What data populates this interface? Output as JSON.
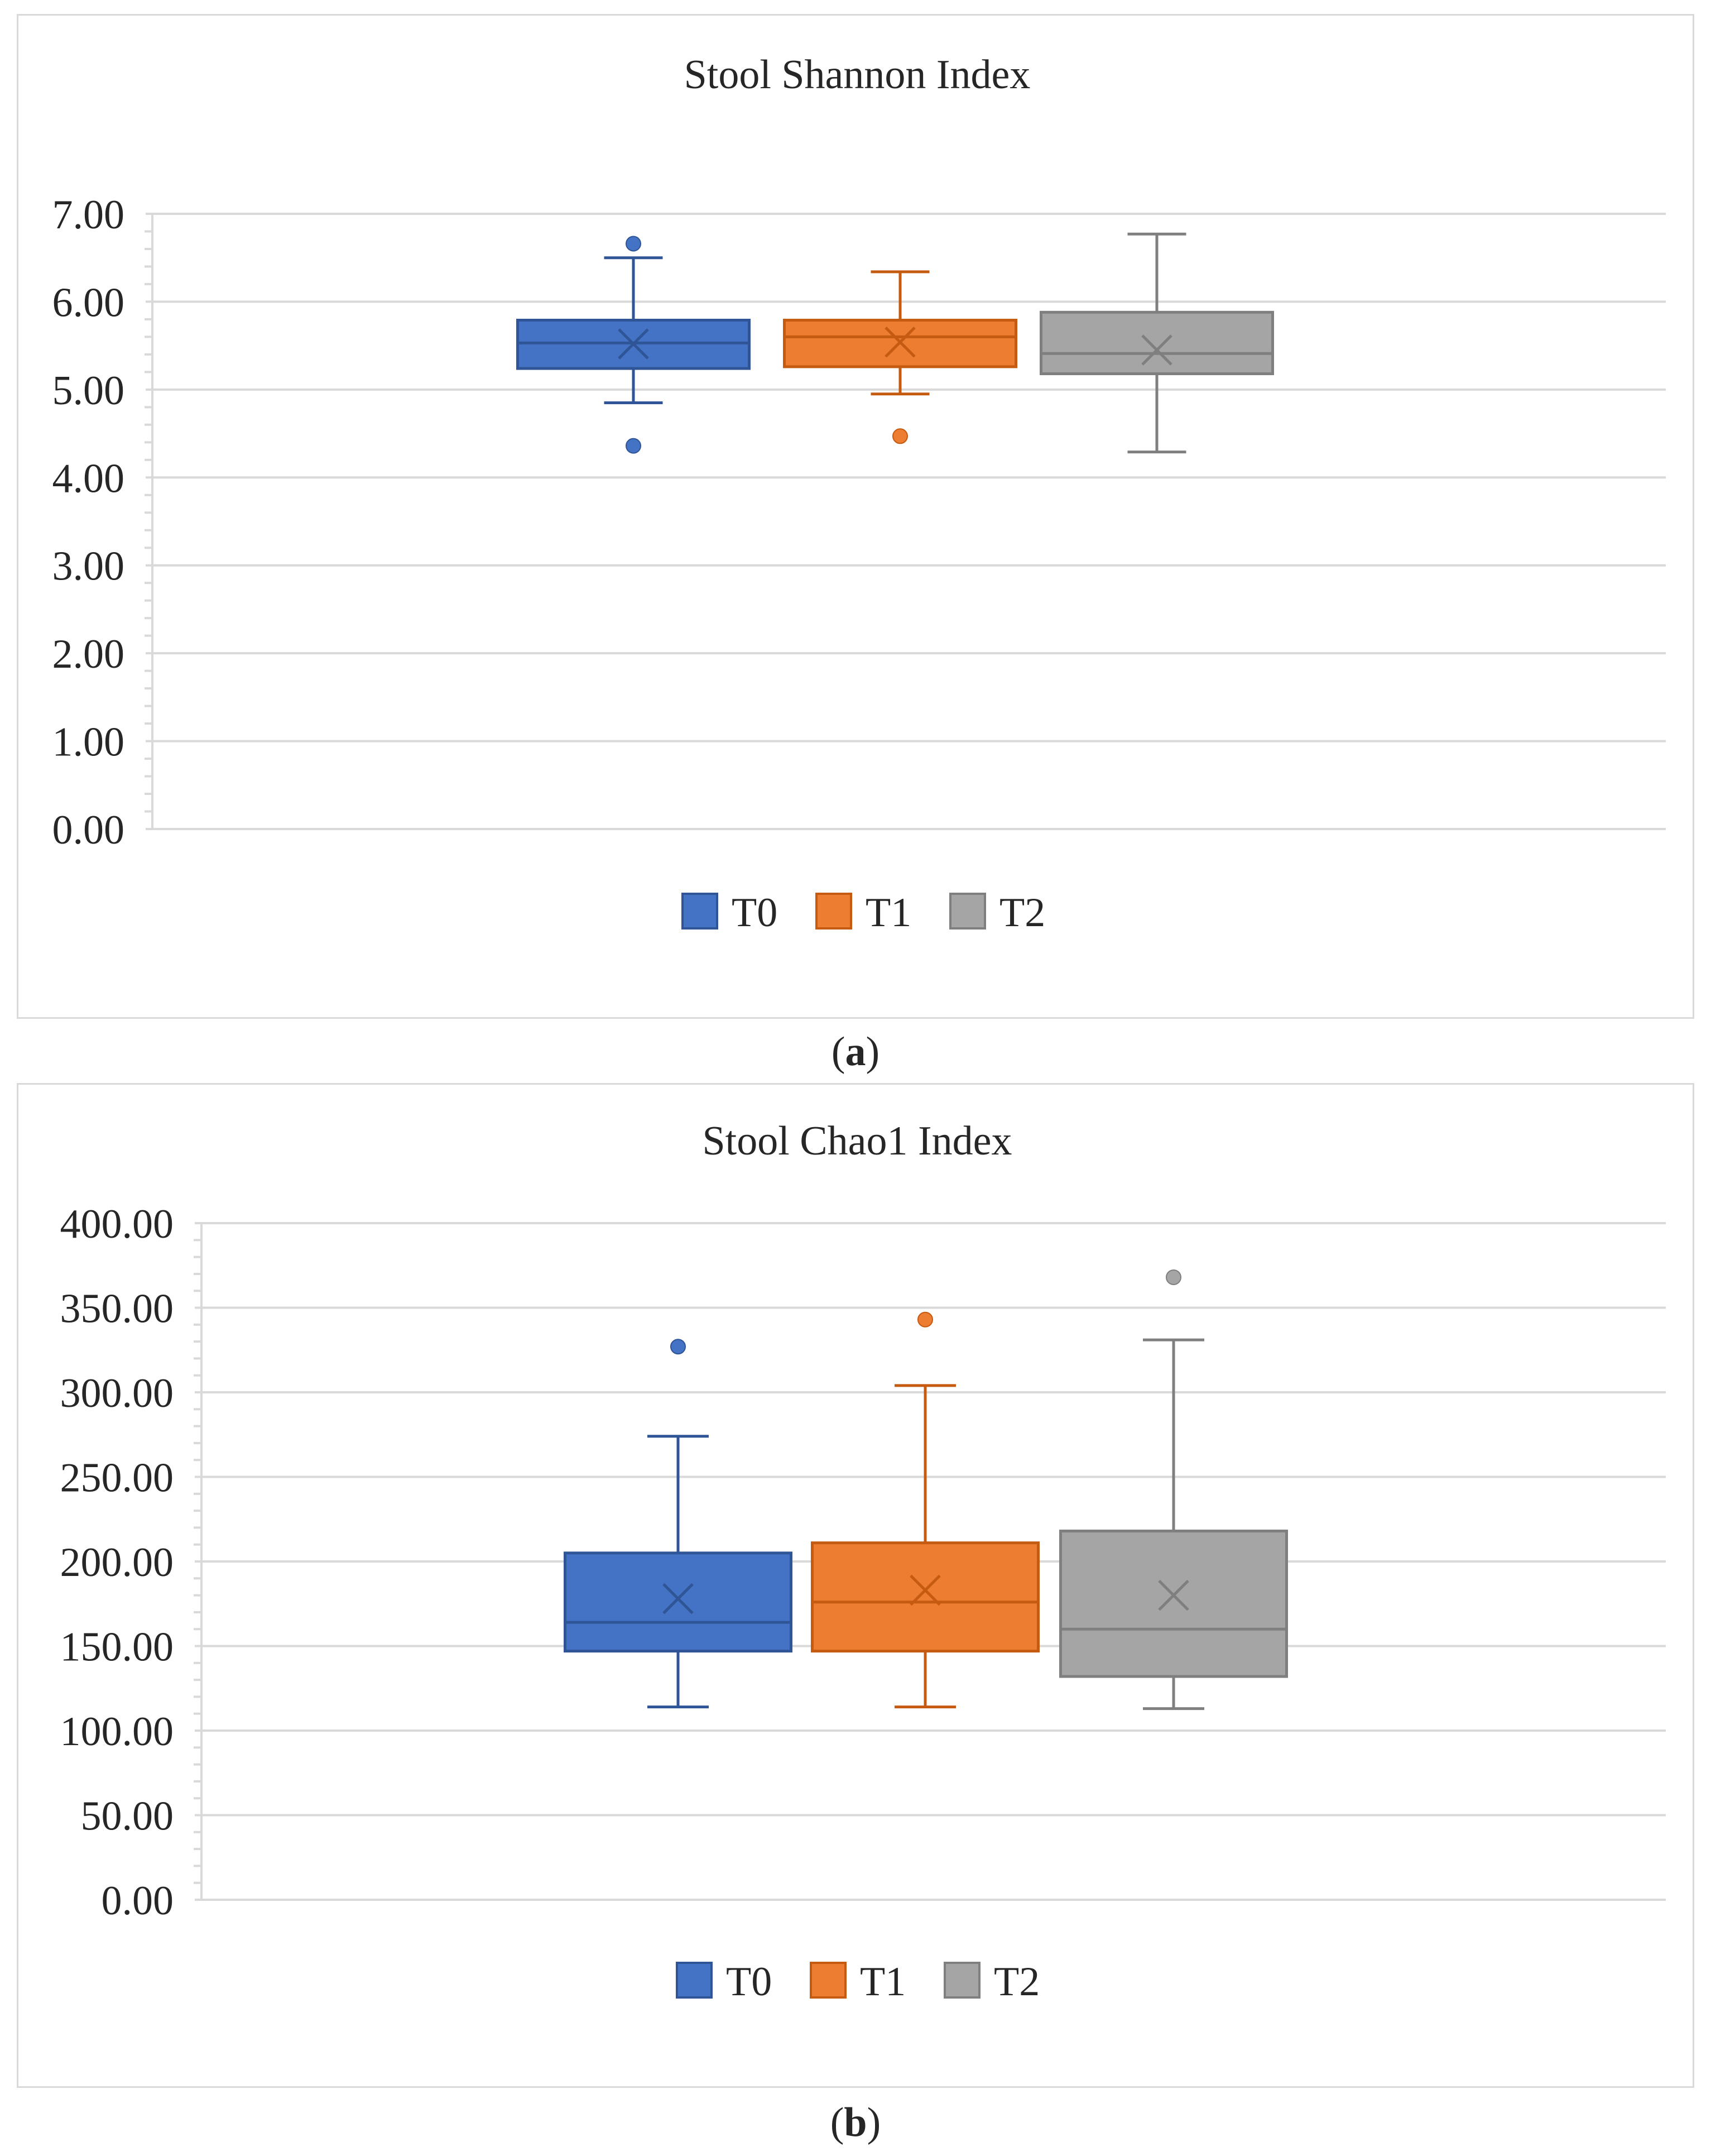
{
  "chart_data": [
    {
      "type": "box",
      "title": "Stool Shannon Index",
      "panel_label": "a",
      "ylim": [
        0,
        7
      ],
      "yticks": [
        0,
        1,
        2,
        3,
        4,
        5,
        6,
        7
      ],
      "ytick_labels": [
        "0.00",
        "1.00",
        "2.00",
        "3.00",
        "4.00",
        "5.00",
        "6.00",
        "7.00"
      ],
      "gridlines": true,
      "legend_position": "bottom-center",
      "series": [
        {
          "name": "T0",
          "color": "#4472c4",
          "min": 4.85,
          "q1": 5.24,
          "median": 5.53,
          "q3": 5.79,
          "max": 6.5,
          "mean": 5.52,
          "outliers": [
            6.66,
            4.36
          ]
        },
        {
          "name": "T1",
          "color": "#ed7d31",
          "min": 4.95,
          "q1": 5.26,
          "median": 5.6,
          "q3": 5.79,
          "max": 6.34,
          "mean": 5.54,
          "outliers": [
            4.47
          ]
        },
        {
          "name": "T2",
          "color": "#a5a5a5",
          "min": 4.29,
          "q1": 5.18,
          "median": 5.41,
          "q3": 5.88,
          "max": 6.77,
          "mean": 5.45,
          "outliers": []
        }
      ]
    },
    {
      "type": "box",
      "title": "Stool Chao1 Index",
      "panel_label": "b",
      "ylim": [
        0,
        400
      ],
      "yticks": [
        0,
        50,
        100,
        150,
        200,
        250,
        300,
        350,
        400
      ],
      "ytick_labels": [
        "0.00",
        "50.00",
        "100.00",
        "150.00",
        "200.00",
        "250.00",
        "300.00",
        "350.00",
        "400.00"
      ],
      "gridlines": true,
      "legend_position": "bottom-center",
      "series": [
        {
          "name": "T0",
          "color": "#4472c4",
          "min": 114,
          "q1": 147,
          "median": 164,
          "q3": 205,
          "max": 274,
          "mean": 178,
          "outliers": [
            327
          ]
        },
        {
          "name": "T1",
          "color": "#ed7d31",
          "min": 114,
          "q1": 147,
          "median": 176,
          "q3": 211,
          "max": 304,
          "mean": 183,
          "outliers": [
            343
          ]
        },
        {
          "name": "T2",
          "color": "#a5a5a5",
          "min": 113,
          "q1": 132,
          "median": 160,
          "q3": 218,
          "max": 331,
          "mean": 180,
          "outliers": [
            368
          ]
        }
      ]
    }
  ]
}
